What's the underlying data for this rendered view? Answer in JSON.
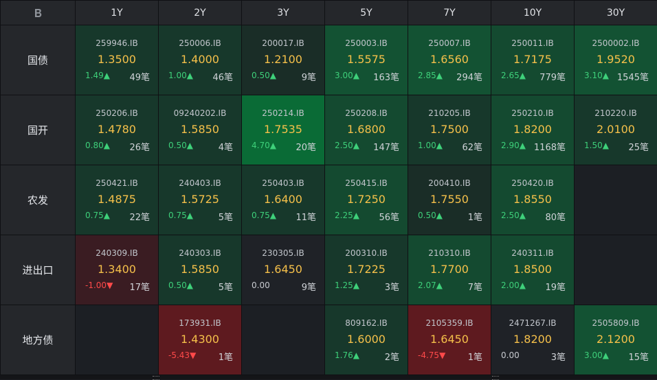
{
  "corner": {
    "logo_letter": "B"
  },
  "columns": [
    "1Y",
    "2Y",
    "3Y",
    "5Y",
    "7Y",
    "10Y",
    "30Y"
  ],
  "rows": [
    {
      "label": "国债",
      "cells": [
        {
          "code": "259946.IB",
          "price": "1.3500",
          "change": "1.49",
          "dir": "up",
          "count": "49笔",
          "bg": "#17382b"
        },
        {
          "code": "250006.IB",
          "price": "1.4000",
          "change": "1.00",
          "dir": "up",
          "count": "46笔",
          "bg": "#17382b"
        },
        {
          "code": "200017.IB",
          "price": "1.2100",
          "change": "0.50",
          "dir": "up",
          "count": "9笔",
          "bg": "#1a2d27"
        },
        {
          "code": "250003.IB",
          "price": "1.5575",
          "change": "3.00",
          "dir": "up",
          "count": "163笔",
          "bg": "#135233"
        },
        {
          "code": "250007.IB",
          "price": "1.6560",
          "change": "2.85",
          "dir": "up",
          "count": "294笔",
          "bg": "#135233"
        },
        {
          "code": "250011.IB",
          "price": "1.7175",
          "change": "2.65",
          "dir": "up",
          "count": "779笔",
          "bg": "#144a30"
        },
        {
          "code": "2500002.IB",
          "price": "1.9520",
          "change": "3.10",
          "dir": "up",
          "count": "1545笔",
          "bg": "#135233"
        }
      ]
    },
    {
      "label": "国开",
      "cells": [
        {
          "code": "250206.IB",
          "price": "1.4780",
          "change": "0.80",
          "dir": "up",
          "count": "26笔",
          "bg": "#17382b"
        },
        {
          "code": "09240202.IB",
          "price": "1.5850",
          "change": "0.50",
          "dir": "up",
          "count": "4笔",
          "bg": "#17382b"
        },
        {
          "code": "250214.IB",
          "price": "1.7535",
          "change": "4.70",
          "dir": "up",
          "count": "20笔",
          "bg": "#0a6b36"
        },
        {
          "code": "250208.IB",
          "price": "1.6800",
          "change": "2.50",
          "dir": "up",
          "count": "147笔",
          "bg": "#144a30"
        },
        {
          "code": "210205.IB",
          "price": "1.7500",
          "change": "1.00",
          "dir": "up",
          "count": "62笔",
          "bg": "#17382b"
        },
        {
          "code": "250210.IB",
          "price": "1.8200",
          "change": "2.90",
          "dir": "up",
          "count": "1168笔",
          "bg": "#144a30"
        },
        {
          "code": "210220.IB",
          "price": "2.0100",
          "change": "1.50",
          "dir": "up",
          "count": "25笔",
          "bg": "#17382b"
        }
      ]
    },
    {
      "label": "农发",
      "cells": [
        {
          "code": "250421.IB",
          "price": "1.4875",
          "change": "0.75",
          "dir": "up",
          "count": "22笔",
          "bg": "#17382b"
        },
        {
          "code": "240403.IB",
          "price": "1.5725",
          "change": "0.75",
          "dir": "up",
          "count": "5笔",
          "bg": "#17382b"
        },
        {
          "code": "250403.IB",
          "price": "1.6400",
          "change": "0.75",
          "dir": "up",
          "count": "11笔",
          "bg": "#17382b"
        },
        {
          "code": "250415.IB",
          "price": "1.7250",
          "change": "2.25",
          "dir": "up",
          "count": "56笔",
          "bg": "#144a30"
        },
        {
          "code": "200410.IB",
          "price": "1.7550",
          "change": "0.50",
          "dir": "up",
          "count": "1笔",
          "bg": "#1a2d27"
        },
        {
          "code": "250420.IB",
          "price": "1.8550",
          "change": "2.50",
          "dir": "up",
          "count": "80笔",
          "bg": "#144a30"
        },
        null
      ]
    },
    {
      "label": "进出口",
      "cells": [
        {
          "code": "240309.IB",
          "price": "1.3400",
          "change": "-1.00",
          "dir": "down",
          "count": "17笔",
          "bg": "#3a1c22"
        },
        {
          "code": "240303.IB",
          "price": "1.5850",
          "change": "0.50",
          "dir": "up",
          "count": "5笔",
          "bg": "#17382b"
        },
        {
          "code": "230305.IB",
          "price": "1.6450",
          "change": "0.00",
          "dir": "flat",
          "count": "9笔",
          "bg": "#1f2227"
        },
        {
          "code": "200310.IB",
          "price": "1.7225",
          "change": "1.25",
          "dir": "up",
          "count": "3笔",
          "bg": "#17382b"
        },
        {
          "code": "210310.IB",
          "price": "1.7700",
          "change": "2.07",
          "dir": "up",
          "count": "7笔",
          "bg": "#144a30"
        },
        {
          "code": "240311.IB",
          "price": "1.8500",
          "change": "2.00",
          "dir": "up",
          "count": "19笔",
          "bg": "#144a30"
        },
        null
      ]
    },
    {
      "label": "地方债",
      "cells": [
        null,
        {
          "code": "173931.IB",
          "price": "1.4300",
          "change": "-5.43",
          "dir": "down",
          "count": "1笔",
          "bg": "#5e1a1f"
        },
        null,
        {
          "code": "809162.IB",
          "price": "1.6000",
          "change": "1.76",
          "dir": "up",
          "count": "2笔",
          "bg": "#17382b"
        },
        {
          "code": "2105359.IB",
          "price": "1.6450",
          "change": "-4.75",
          "dir": "down",
          "count": "1笔",
          "bg": "#5e1a1f"
        },
        {
          "code": "2471267.IB",
          "price": "1.8200",
          "change": "0.00",
          "dir": "flat",
          "count": "3笔",
          "bg": "#1f2227"
        },
        {
          "code": "2505809.IB",
          "price": "2.1200",
          "change": "3.00",
          "dir": "up",
          "count": "15笔",
          "bg": "#135233"
        }
      ]
    }
  ],
  "arrows": {
    "up": "▲",
    "down": "▼",
    "flat": ""
  }
}
